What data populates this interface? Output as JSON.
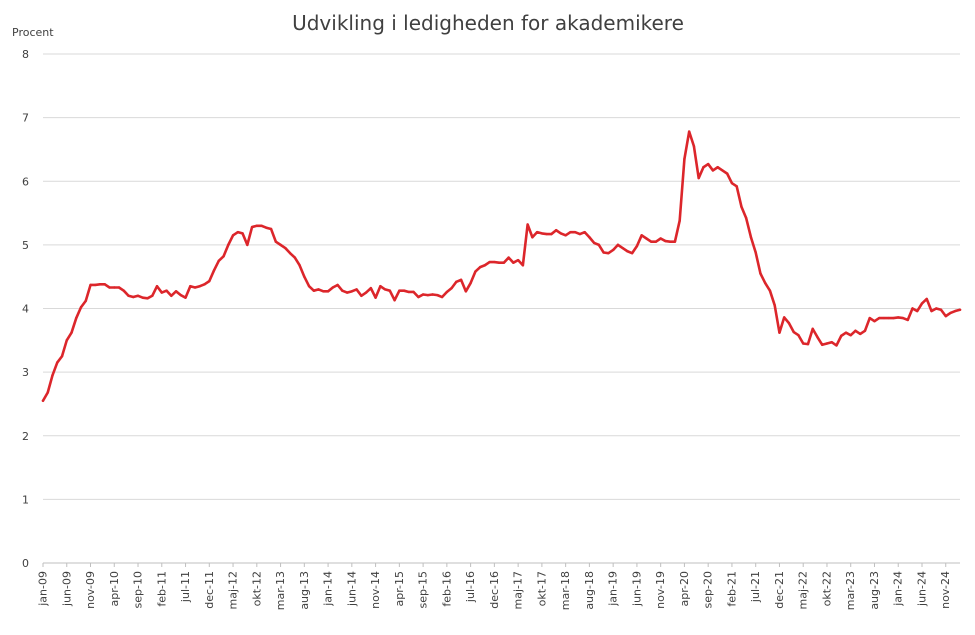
{
  "chart_data": {
    "type": "line",
    "title": "Udvikling i ledigheden for akademikere",
    "ylabel": "Procent",
    "xlabel": "",
    "ylim": [
      0,
      8
    ],
    "yticks": [
      0,
      1,
      2,
      3,
      4,
      5,
      6,
      7,
      8
    ],
    "grid": true,
    "legend": "none",
    "color": "#dc262b",
    "x_start": "jan-09",
    "x_end": "dec-24",
    "x_ticks": [
      "jan-09",
      "jun-09",
      "nov-09",
      "apr-10",
      "sep-10",
      "feb-11",
      "jul-11",
      "dec-11",
      "maj-12",
      "okt-12",
      "mar-13",
      "aug-13",
      "jan-14",
      "jun-14",
      "nov-14",
      "apr-15",
      "sep-15",
      "feb-16",
      "jul-16",
      "dec-16",
      "maj-17",
      "okt-17",
      "mar-18",
      "aug-18",
      "jan-19",
      "jun-19",
      "nov-19",
      "apr-20",
      "sep-20",
      "feb-21",
      "jul-21",
      "dec-21",
      "maj-22",
      "okt-22",
      "mar-23",
      "aug-23",
      "jan-24",
      "jun-24",
      "nov-24"
    ],
    "series": [
      {
        "values": [
          2.55,
          2.68,
          2.95,
          3.15,
          3.25,
          3.5,
          3.62,
          3.85,
          4.02,
          4.12,
          4.37,
          4.37,
          4.38,
          4.38,
          4.33,
          4.33,
          4.33,
          4.28,
          4.2,
          4.18,
          4.2,
          4.17,
          4.16,
          4.2,
          4.35,
          4.25,
          4.28,
          4.2,
          4.27,
          4.21,
          4.17,
          4.35,
          4.33,
          4.35,
          4.38,
          4.43,
          4.6,
          4.75,
          4.82,
          5.0,
          5.15,
          5.2,
          5.18,
          5.0,
          5.28,
          5.3,
          5.3,
          5.27,
          5.25,
          5.05,
          5.0,
          4.95,
          4.87,
          4.8,
          4.68,
          4.5,
          4.35,
          4.28,
          4.3,
          4.27,
          4.27,
          4.33,
          4.37,
          4.28,
          4.25,
          4.27,
          4.3,
          4.2,
          4.25,
          4.32,
          4.17,
          4.35,
          4.3,
          4.28,
          4.13,
          4.28,
          4.28,
          4.26,
          4.26,
          4.18,
          4.22,
          4.21,
          4.22,
          4.21,
          4.18,
          4.26,
          4.32,
          4.42,
          4.45,
          4.27,
          4.4,
          4.58,
          4.65,
          4.68,
          4.73,
          4.73,
          4.72,
          4.72,
          4.8,
          4.72,
          4.76,
          4.68,
          5.32,
          5.12,
          5.2,
          5.18,
          5.17,
          5.17,
          5.23,
          5.18,
          5.15,
          5.2,
          5.2,
          5.17,
          5.2,
          5.12,
          5.03,
          5.0,
          4.88,
          4.87,
          4.92,
          5.0,
          4.95,
          4.9,
          4.87,
          4.98,
          5.15,
          5.1,
          5.05,
          5.05,
          5.1,
          5.06,
          5.05,
          5.05,
          5.38,
          6.35,
          6.78,
          6.55,
          6.05,
          6.22,
          6.27,
          6.17,
          6.22,
          6.17,
          6.12,
          5.97,
          5.92,
          5.6,
          5.42,
          5.12,
          4.88,
          4.55,
          4.4,
          4.28,
          4.05,
          3.62,
          3.86,
          3.77,
          3.63,
          3.58,
          3.45,
          3.44,
          3.68,
          3.55,
          3.43,
          3.45,
          3.47,
          3.42,
          3.57,
          3.62,
          3.58,
          3.65,
          3.6,
          3.65,
          3.85,
          3.8,
          3.85,
          3.85,
          3.85,
          3.85,
          3.86,
          3.85,
          3.82,
          4.0,
          3.96,
          4.08,
          4.15,
          3.96,
          4.0,
          3.98,
          3.88,
          3.93,
          3.96,
          3.98
        ]
      }
    ]
  }
}
